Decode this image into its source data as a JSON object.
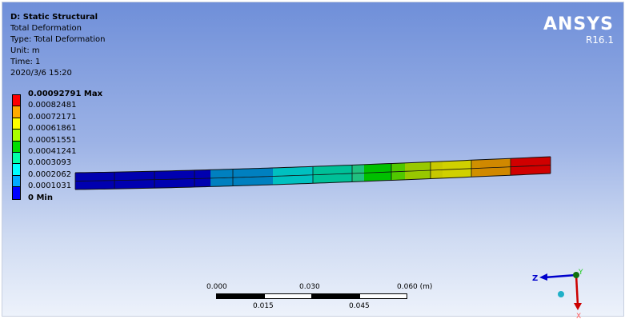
{
  "header": {
    "title": "D: Static Structural",
    "result": "Total Deformation",
    "type": "Type: Total Deformation",
    "unit": "Unit: m",
    "time": "Time: 1",
    "date": "2020/3/6 15:20"
  },
  "brand": {
    "name": "ANSYS",
    "version": "R16.1"
  },
  "legend": {
    "labels": [
      "0.00092791 Max",
      "0.00082481",
      "0.00072171",
      "0.00061861",
      "0.00051551",
      "0.00041241",
      "0.0003093",
      "0.0002062",
      "0.0001031",
      "0 Min"
    ],
    "colors": [
      "#ff0000",
      "#ffaa00",
      "#ffff00",
      "#aaff00",
      "#00dd00",
      "#00ffaa",
      "#00ffff",
      "#00aaff",
      "#0000ff"
    ]
  },
  "beam_colors": [
    "#0000b0",
    "#0000b0",
    "#0000b0",
    "#0000b0",
    "#0080c0",
    "#0080c0",
    "#00c0c0",
    "#00c098",
    "#20c080",
    "#00c000",
    "#50c800",
    "#98c800",
    "#c8c800",
    "#d0d000",
    "#d09000",
    "#d08800",
    "#d00000"
  ],
  "scale": {
    "top": [
      "0.000",
      "0.030",
      "0.060 (m)"
    ],
    "bottom": [
      "0.015",
      "0.045"
    ]
  },
  "triad": {
    "z": "Z",
    "y": "Y",
    "x": "X",
    "colors": {
      "x": "#cc0000",
      "y": "#00a000",
      "z": "#0000cc"
    }
  }
}
